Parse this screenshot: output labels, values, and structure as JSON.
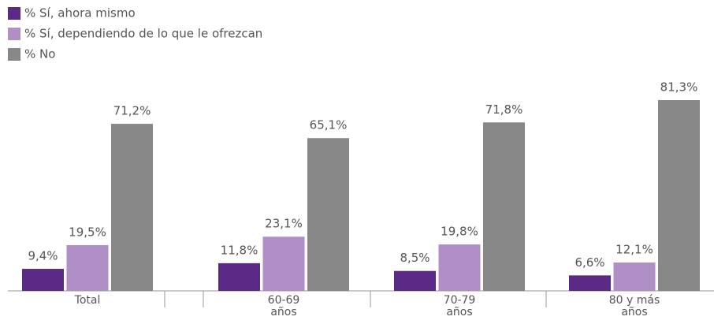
{
  "chart_data": {
    "type": "bar",
    "categories": [
      "Total",
      "60-69 años",
      "70-79 años",
      "80 y más años"
    ],
    "series": [
      {
        "name": "% Sí, ahora mismo",
        "color": "#5b2a86",
        "values": [
          9.4,
          11.8,
          8.5,
          6.6
        ],
        "value_labels": [
          "9,4%",
          "11,8%",
          "8,5%",
          "6,6%"
        ]
      },
      {
        "name": "% Sí, dependiendo de lo que le ofrezcan",
        "color": "#b08fc7",
        "values": [
          19.5,
          23.1,
          19.8,
          12.1
        ],
        "value_labels": [
          "19,5%",
          "23,1%",
          "19,8%",
          "12,1%"
        ]
      },
      {
        "name": "% No",
        "color": "#878787",
        "values": [
          71.2,
          65.1,
          71.8,
          81.3
        ],
        "value_labels": [
          "71,2%",
          "65,1%",
          "71,8%",
          "81,3%"
        ]
      }
    ],
    "ylim": [
      0,
      85
    ],
    "legend": "top-left"
  }
}
